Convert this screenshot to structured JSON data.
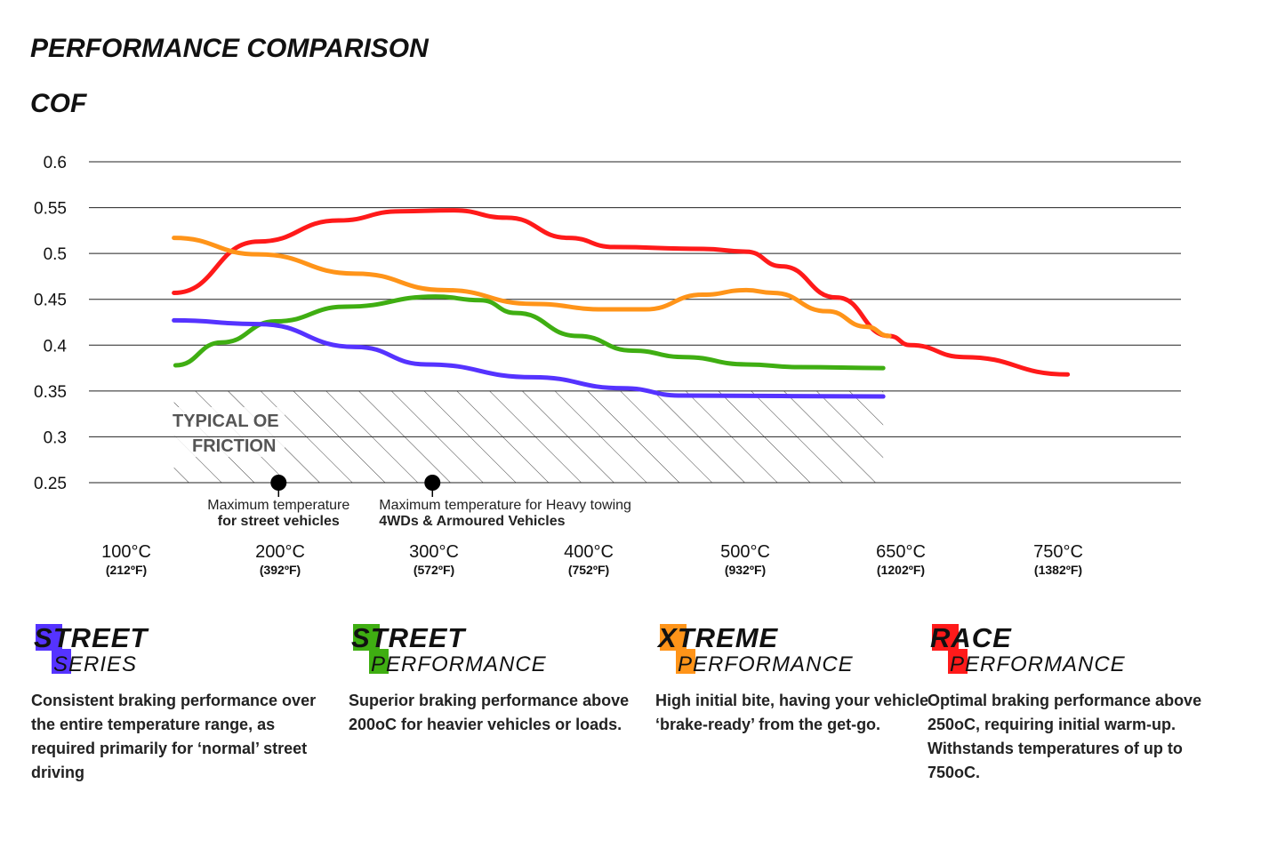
{
  "chart_data": {
    "type": "line",
    "title": "PERFORMANCE COMPARISON",
    "ylabel": "COF",
    "ylim": [
      0.25,
      0.6
    ],
    "yticks": [
      "0.6",
      "0.55",
      "0.5",
      "0.45",
      "0.4",
      "0.35",
      "0.3",
      "0.25"
    ],
    "xticks": [
      {
        "value": 100,
        "label": "100°C",
        "sub": "(212ºF)"
      },
      {
        "value": 200,
        "label": "200°C",
        "sub": "(392ºF)"
      },
      {
        "value": 300,
        "label": "300°C",
        "sub": "(572ºF)"
      },
      {
        "value": 400,
        "label": "400°C",
        "sub": "(752ºF)"
      },
      {
        "value": 500,
        "label": "500°C",
        "sub": "(932ºF)"
      },
      {
        "value": 650,
        "label": "650°C",
        "sub": "(1202ºF)"
      },
      {
        "value": 750,
        "label": "750°C",
        "sub": "(1382ºF)"
      }
    ],
    "grid": true,
    "series": [
      {
        "color": "#ff1a1a",
        "points": [
          [
            131,
            0.457
          ],
          [
            186,
            0.513
          ],
          [
            238,
            0.536
          ],
          [
            278,
            0.546
          ],
          [
            313,
            0.547
          ],
          [
            347,
            0.539
          ],
          [
            387,
            0.517
          ],
          [
            416,
            0.507
          ],
          [
            473,
            0.505
          ],
          [
            501,
            0.502
          ],
          [
            535,
            0.486
          ],
          [
            588,
            0.452
          ],
          [
            639,
            0.41
          ],
          [
            656,
            0.4
          ],
          [
            690,
            0.387
          ],
          [
            756,
            0.368
          ]
        ]
      },
      {
        "color": "#ff9419",
        "points": [
          [
            131,
            0.517
          ],
          [
            186,
            0.499
          ],
          [
            249,
            0.478
          ],
          [
            307,
            0.46
          ],
          [
            364,
            0.445
          ],
          [
            410,
            0.439
          ],
          [
            436,
            0.439
          ],
          [
            473,
            0.455
          ],
          [
            501,
            0.46
          ],
          [
            527,
            0.457
          ],
          [
            579,
            0.437
          ],
          [
            617,
            0.42
          ],
          [
            639,
            0.41
          ]
        ]
      },
      {
        "color": "#3fae12",
        "points": [
          [
            132,
            0.378
          ],
          [
            162,
            0.403
          ],
          [
            197,
            0.426
          ],
          [
            243,
            0.442
          ],
          [
            301,
            0.453
          ],
          [
            330,
            0.449
          ],
          [
            353,
            0.435
          ],
          [
            393,
            0.41
          ],
          [
            428,
            0.394
          ],
          [
            461,
            0.387
          ],
          [
            501,
            0.379
          ],
          [
            552,
            0.376
          ],
          [
            633,
            0.375
          ]
        ]
      },
      {
        "color": "#5533ff",
        "points": [
          [
            131,
            0.427
          ],
          [
            186,
            0.423
          ],
          [
            249,
            0.398
          ],
          [
            295,
            0.379
          ],
          [
            364,
            0.365
          ],
          [
            422,
            0.353
          ],
          [
            459,
            0.345
          ],
          [
            633,
            0.344
          ]
        ]
      }
    ],
    "zone": {
      "label_line1": "TYPICAL OE",
      "label_line2": "FRICTION",
      "x": [
        131,
        633
      ],
      "y": [
        0.25,
        0.35
      ]
    },
    "annotations": [
      {
        "x": 199,
        "y": 0.25,
        "line1": "Maximum temperature",
        "line2": "for street vehicles"
      },
      {
        "x": 299,
        "y": 0.25,
        "line1": "Maximum temperature for Heavy towing",
        "line2": "4WDs & Armoured Vehicles"
      }
    ]
  },
  "products": [
    {
      "top_initial": "S",
      "top_rest": "TREET",
      "sub_initial": "S",
      "sub_rest": "ERIES",
      "color": "#5533ff",
      "desc": "Consistent braking performance over the entire temperature range, as required primarily for ‘normal’ street driving"
    },
    {
      "top_initial": "S",
      "top_rest": "TREET",
      "sub_initial": "P",
      "sub_rest": "ERFORMANCE",
      "color": "#3fae12",
      "desc": "Superior braking performance above 200oC for heavier vehicles or loads."
    },
    {
      "top_initial": "X",
      "top_rest": "TREME",
      "sub_initial": "P",
      "sub_rest": "ERFORMANCE",
      "color": "#ff9419",
      "desc": "High initial bite, having your vehicle ‘brake-ready’ from the get-go."
    },
    {
      "top_initial": "R",
      "top_rest": "ACE",
      "sub_initial": "P",
      "sub_rest": "ERFORMANCE",
      "color": "#ff1a1a",
      "desc": "Optimal braking performance above 250oC, requiring initial warm-up. Withstands temperatures of up to 750oC."
    }
  ]
}
